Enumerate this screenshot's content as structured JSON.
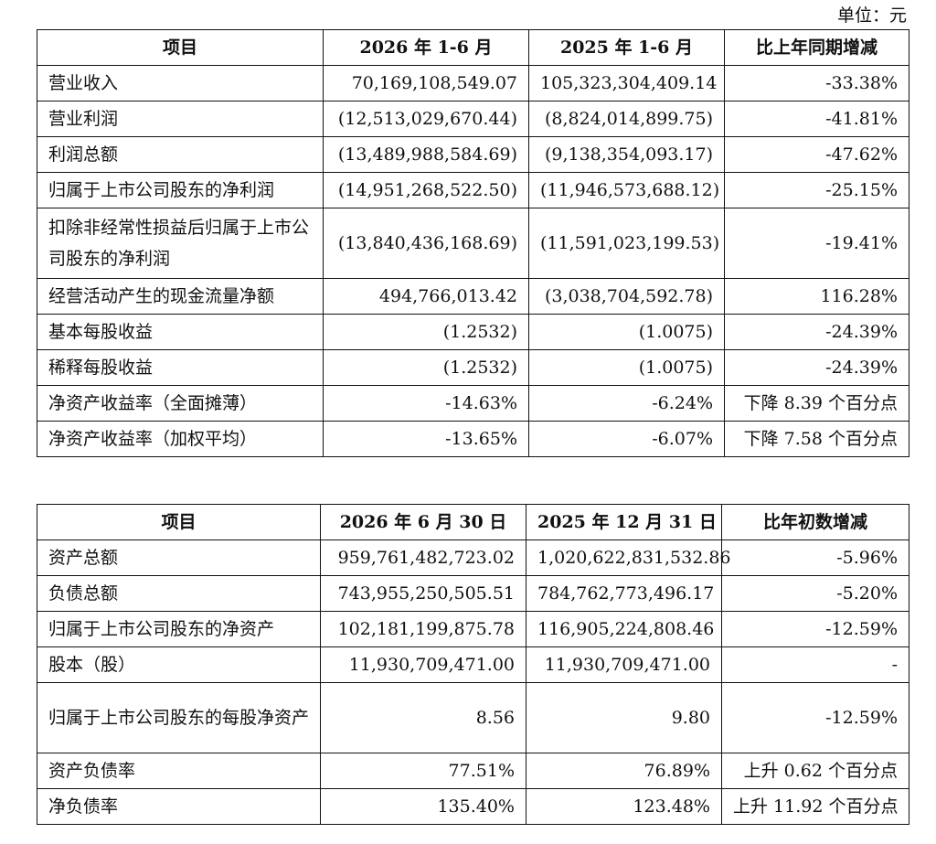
{
  "unit": "单位：元",
  "table1": {
    "headers": [
      "项目",
      "2026 年 1-6 月",
      "2025 年 1-6 月",
      "比上年同期增减"
    ],
    "rows": [
      {
        "item": "营业收入",
        "current": "70,169,108,549.07",
        "previous": "105,323,304,409.14",
        "change": "-33.38%"
      },
      {
        "item": "营业利润",
        "current": "(12,513,029,670.44)",
        "previous": "(8,824,014,899.75)",
        "change": "-41.81%"
      },
      {
        "item": "利润总额",
        "current": "(13,489,988,584.69)",
        "previous": "(9,138,354,093.17)",
        "change": "-47.62%"
      },
      {
        "item": "归属于上市公司股东的净利润",
        "current": "(14,951,268,522.50)",
        "previous": "(11,946,573,688.12)",
        "change": "-25.15%"
      },
      {
        "item": "扣除非经常性损益后归属于上市公司股东的净利润",
        "current": "(13,840,436,168.69)",
        "previous": "(11,591,023,199.53)",
        "change": "-19.41%"
      },
      {
        "item": "经营活动产生的现金流量净额",
        "current": "494,766,013.42",
        "previous": "(3,038,704,592.78)",
        "change": "116.28%"
      },
      {
        "item": "基本每股收益",
        "current": "(1.2532)",
        "previous": "(1.0075)",
        "change": "-24.39%"
      },
      {
        "item": "稀释每股收益",
        "current": "(1.2532)",
        "previous": "(1.0075)",
        "change": "-24.39%"
      },
      {
        "item": "净资产收益率（全面摊薄）",
        "current": "-14.63%",
        "previous": "-6.24%",
        "change": "下降 8.39 个百分点"
      },
      {
        "item": "净资产收益率（加权平均）",
        "current": "-13.65%",
        "previous": "-6.07%",
        "change": "下降 7.58 个百分点"
      }
    ]
  },
  "table2": {
    "headers": [
      "项目",
      "2026 年 6 月 30 日",
      "2025 年 12 月 31 日",
      "比年初数增减"
    ],
    "rows": [
      {
        "item": "资产总额",
        "current": "959,761,482,723.02",
        "previous": "1,020,622,831,532.86",
        "change": "-5.96%"
      },
      {
        "item": "负债总额",
        "current": "743,955,250,505.51",
        "previous": "784,762,773,496.17",
        "change": "-5.20%"
      },
      {
        "item": "归属于上市公司股东的净资产",
        "current": "102,181,199,875.78",
        "previous": "116,905,224,808.46",
        "change": "-12.59%"
      },
      {
        "item": "股本（股）",
        "current": "11,930,709,471.00",
        "previous": "11,930,709,471.00",
        "change": "-"
      },
      {
        "item": "归属于上市公司股东的每股净资产",
        "current": "8.56",
        "previous": "9.80",
        "change": "-12.59%"
      },
      {
        "item": "资产负债率",
        "current": "77.51%",
        "previous": "76.89%",
        "change": "上升 0.62 个百分点"
      },
      {
        "item": "净负债率",
        "current": "135.40%",
        "previous": "123.48%",
        "change": "上升 11.92 个百分点"
      }
    ]
  }
}
